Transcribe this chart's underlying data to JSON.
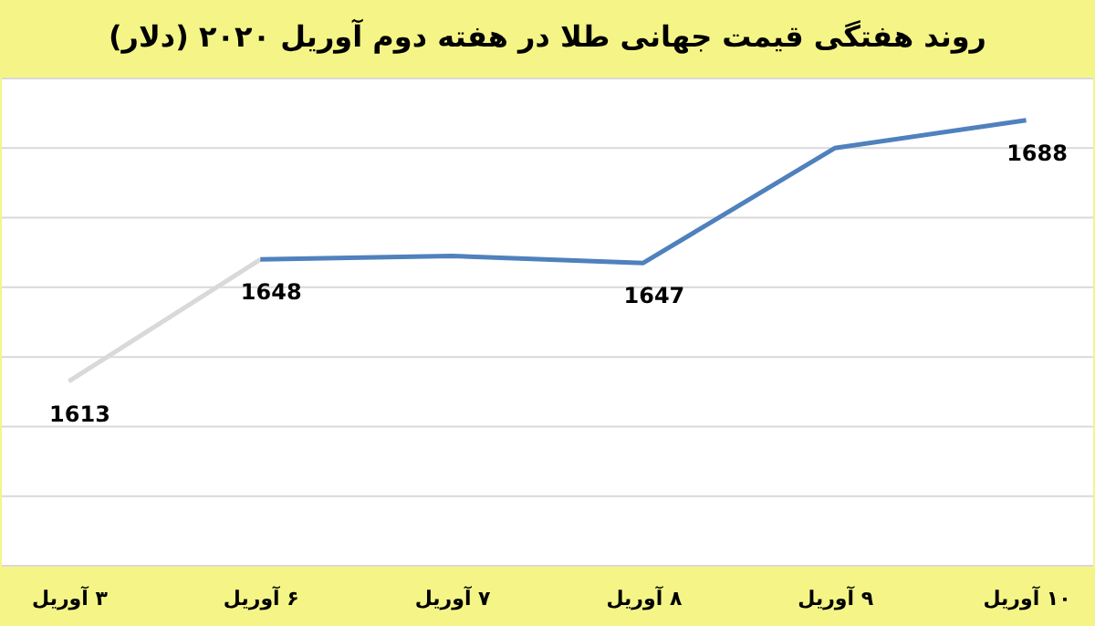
{
  "chart_data": {
    "type": "line",
    "title": "روند هفتگی قیمت جهانی طلا در هفته دوم آوریل ۲۰۲۰ (دلار)",
    "categories": [
      "۳ آوریل",
      "۶ آوریل",
      "۷ آوریل",
      "۸ آوریل",
      "۹ آوریل",
      "۱۰ آوریل"
    ],
    "series": [
      {
        "color": "#d9d9d9",
        "values": [
          1613,
          1648,
          null,
          null,
          null,
          null
        ],
        "value_labels": [
          "1613",
          "1648",
          null,
          null,
          null,
          null
        ]
      },
      {
        "color": "#4f81bd",
        "values": [
          null,
          1648,
          1649,
          1647,
          1680,
          1688
        ],
        "value_labels": [
          null,
          null,
          null,
          "1647",
          null,
          "1688"
        ]
      }
    ],
    "ylim": [
      1560,
      1700
    ],
    "yticks": [
      {
        "value": 1560,
        "label": null
      },
      {
        "value": 1580,
        "label": null
      },
      {
        "value": 1600,
        "label": null
      },
      {
        "value": 1620,
        "label": null
      },
      {
        "value": 1640,
        "label": null
      },
      {
        "value": 1660,
        "label": null
      },
      {
        "value": 1680,
        "label": null
      },
      {
        "value": 1700,
        "label": null
      }
    ],
    "grid": "y",
    "tick_labels": "x",
    "legend": false,
    "marker": "none",
    "line_style": "solid"
  }
}
